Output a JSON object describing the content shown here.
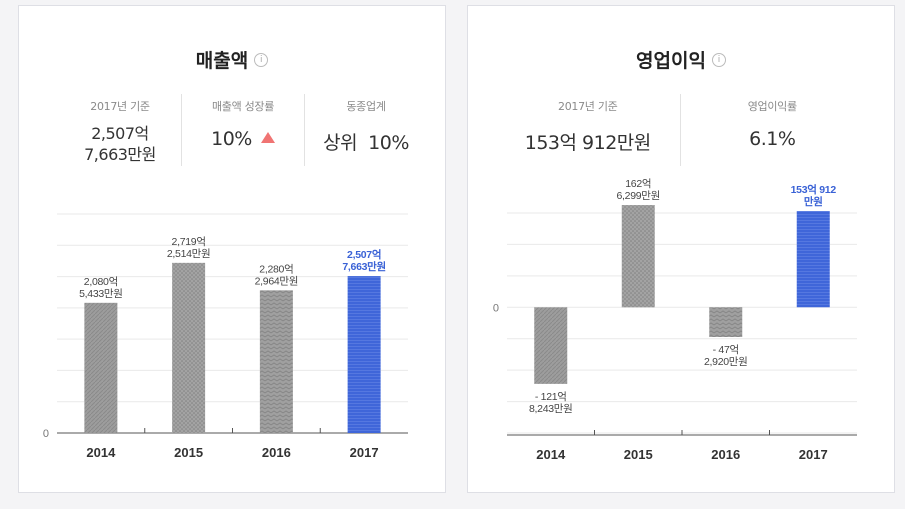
{
  "revenue_card": {
    "title": "매출액",
    "info_icon": "i",
    "stats": [
      {
        "label": "2017년 기준",
        "value_line1": "2,507억",
        "value_line2": "7,663만원"
      },
      {
        "label": "매출액 성장률",
        "value": "10%",
        "indicator": "up-triangle",
        "indicator_color": "#f07473"
      },
      {
        "label": "동종업계",
        "value": "상위  10%"
      }
    ]
  },
  "profit_card": {
    "title": "영업이익",
    "info_icon": "i",
    "stats": [
      {
        "label": "2017년 기준",
        "value": "153억 912만원"
      },
      {
        "label": "영업이익률",
        "value": "6.1%"
      }
    ]
  },
  "chart_data": [
    {
      "type": "bar",
      "categories": [
        "2014",
        "2015",
        "2016",
        "2017"
      ],
      "values": [
        2080.5433,
        2719.2514,
        2280.2964,
        2507.7663
      ],
      "data_labels": [
        [
          "2,080억",
          "5,433만원"
        ],
        [
          "2,719억",
          "2,514만원"
        ],
        [
          "2,280억",
          "2,964만원"
        ],
        [
          "2,507억",
          "7,663만원"
        ]
      ],
      "ylim": [
        0,
        3500
      ],
      "zero_label": "0",
      "grid": true,
      "highlight_index": 3,
      "colors": {
        "bar": "#9a9a9a",
        "highlight": "#3a62d6",
        "highlight_label": "#3a62d6"
      }
    },
    {
      "type": "bar",
      "categories": [
        "2014",
        "2015",
        "2016",
        "2017"
      ],
      "values": [
        -121.8243,
        162.6299,
        -47.292,
        153.0912
      ],
      "data_labels": [
        [
          "- 121억",
          "8,243만원"
        ],
        [
          "162억",
          "6,299만원"
        ],
        [
          "- 47억",
          "2,920만원"
        ],
        [
          "153억 912",
          "만원"
        ]
      ],
      "ylim": [
        -200,
        150
      ],
      "zero_label": "0",
      "grid": true,
      "highlight_index": 3,
      "colors": {
        "bar": "#9a9a9a",
        "highlight": "#3a62d6",
        "highlight_label": "#3a62d6"
      }
    }
  ]
}
